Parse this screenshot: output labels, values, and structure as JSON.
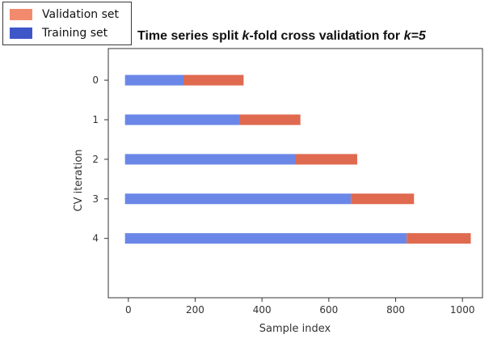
{
  "chart_data": {
    "type": "bar",
    "orientation": "horizontal",
    "title_parts": [
      "Time series split ",
      "k",
      "-fold cross validation for ",
      "k=5"
    ],
    "xlabel": "Sample index",
    "ylabel": "CV iteration",
    "xlim": [
      -60,
      1060
    ],
    "ylim": [
      -0.8,
      5.5
    ],
    "xticks": [
      0,
      200,
      400,
      600,
      800,
      1000
    ],
    "yticks": [
      0,
      1,
      2,
      3,
      4
    ],
    "grid": false,
    "legend_position": "top-left",
    "legend": [
      {
        "name": "Validation set",
        "color": "#f28b6e"
      },
      {
        "name": "Training set",
        "color": "#3f56c8"
      }
    ],
    "series": [
      {
        "name": "Training set",
        "color": "#6a87e8",
        "start": [
          -10,
          -10,
          -10,
          -10,
          -10
        ],
        "end": [
          165,
          333,
          500,
          666,
          833
        ]
      },
      {
        "name": "Validation set",
        "color": "#df6a4f",
        "start": [
          165,
          333,
          500,
          666,
          833
        ],
        "end": [
          345,
          515,
          685,
          855,
          1025
        ]
      }
    ]
  }
}
